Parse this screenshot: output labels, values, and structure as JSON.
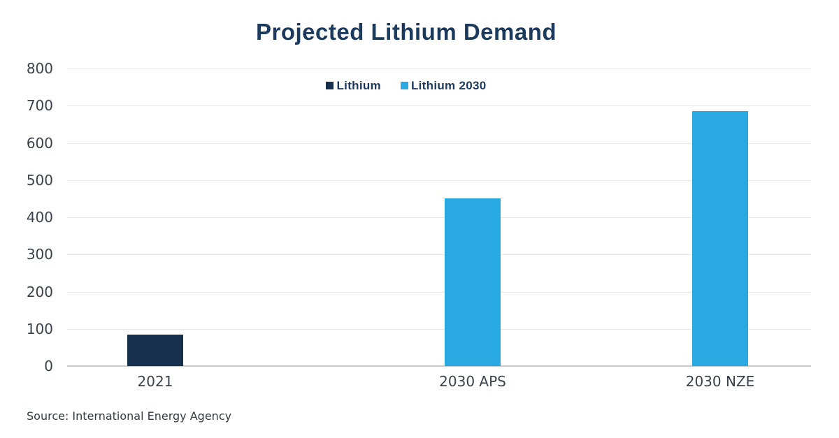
{
  "chart_data": {
    "type": "bar",
    "title": "Projected Lithium Demand",
    "categories": [
      "2021",
      "2030 APS",
      "2030 NZE"
    ],
    "series": [
      {
        "name": "Lithium",
        "color": "#17304e",
        "values": [
          85,
          null,
          null
        ]
      },
      {
        "name": "Lithium 2030",
        "color": "#29a9e1",
        "values": [
          null,
          450,
          685
        ]
      }
    ],
    "xlabel": "",
    "ylabel": "",
    "ylim": [
      0,
      800
    ],
    "ytick_step": 100,
    "yticks": [
      0,
      100,
      200,
      300,
      400,
      500,
      600,
      700,
      800
    ],
    "grid": "horizontal",
    "legend_position": "top-center",
    "background": "#ffffff",
    "title_color": "#1c3a5e",
    "axis_label_color": "#39424c",
    "gridline_color": "#e8e8e8",
    "baseline_color": "#c9cccf",
    "source": "Source: International Energy Agency"
  }
}
